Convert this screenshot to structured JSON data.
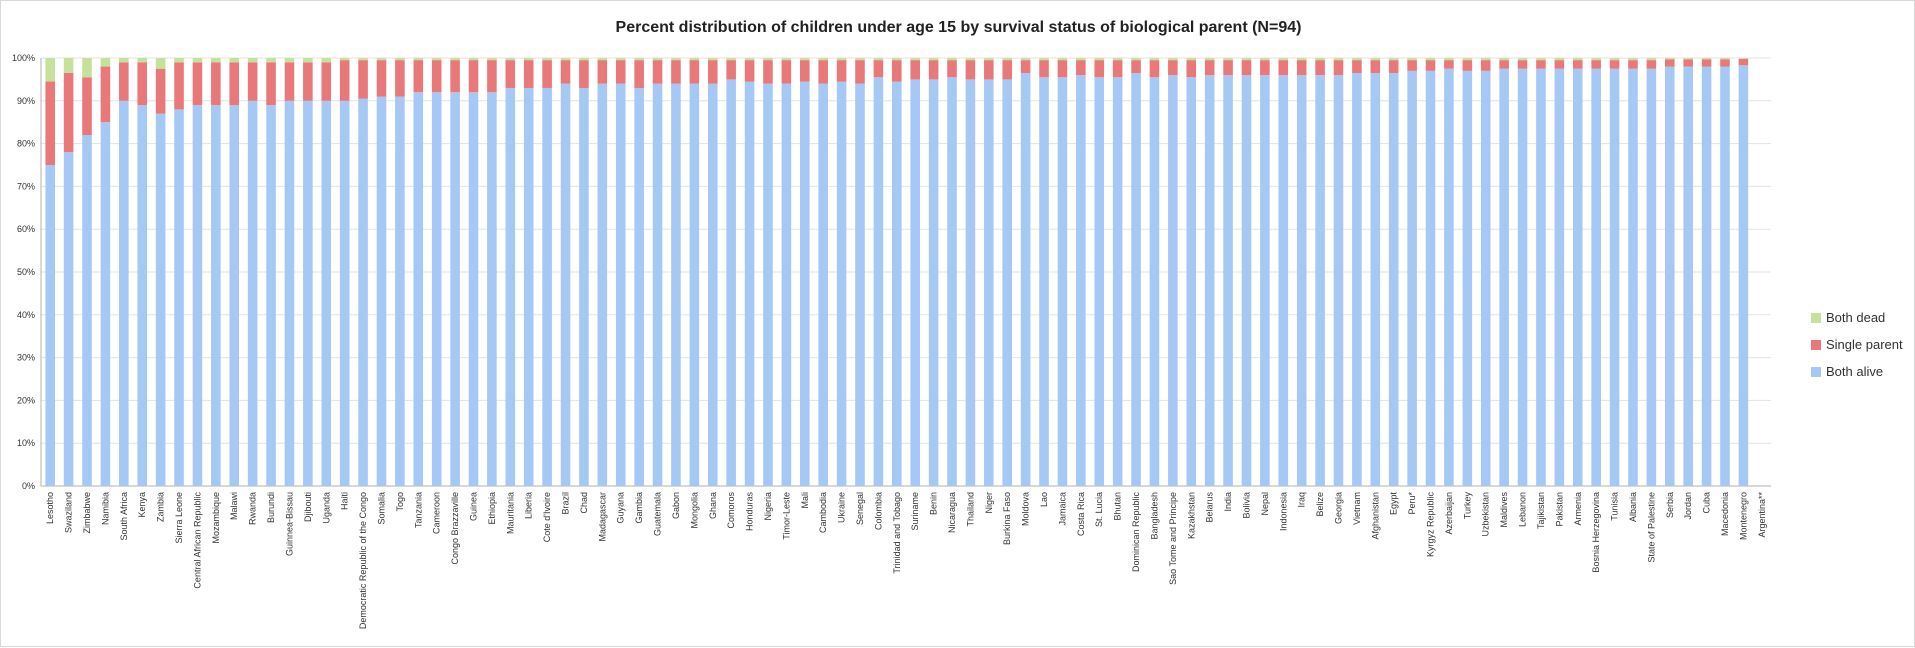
{
  "chart_data": {
    "type": "bar",
    "stacked": true,
    "title": "Percent distribution of children under age 15 by survival status of biological parent (N=94)",
    "ylim": [
      0,
      100
    ],
    "y_ticks": [
      "0%",
      "10%",
      "20%",
      "30%",
      "40%",
      "50%",
      "60%",
      "70%",
      "80%",
      "90%",
      "100%"
    ],
    "grid": "horizontal",
    "legend_position": "right",
    "categories": [
      "Lesotho",
      "Swaziland",
      "Zimbabwe",
      "Namibia",
      "South Africa",
      "Kenya",
      "Zambia",
      "Sierra Leone",
      "Central African Republic",
      "Mozambique",
      "Malawi",
      "Rwanda",
      "Burundi",
      "Guinnea-Bissau",
      "Djibouti",
      "Uganda",
      "Haiti",
      "Democratic Republic of the Congo",
      "Somalia",
      "Togo",
      "Tanzania",
      "Cameroon",
      "Congo Brazzaville",
      "Guinea",
      "Ethiopia",
      "Mauritania",
      "Liberia",
      "Cote d'Ivoire",
      "Brazil",
      "Chad",
      "Madagascar",
      "Guyana",
      "Gambia",
      "Guatemala",
      "Gabon",
      "Mongolia",
      "Ghana",
      "Comoros",
      "Honduras",
      "Nigeria",
      "Timor-Leste",
      "Mali",
      "Cambodia",
      "Ukraine",
      "Senegal",
      "Colombia",
      "Trinidad and Tobago",
      "Suriname",
      "Benin",
      "Nicaragua",
      "Thailand",
      "Niger",
      "Burkina Faso",
      "Moldova",
      "Lao",
      "Jamaica",
      "Costa Rica",
      "St. Lucia",
      "Bhutan",
      "Dominican Republic",
      "Bangladesh",
      "Sao Tome and Principe",
      "Kazakhstan",
      "Belarus",
      "India",
      "Bolivia",
      "Nepal",
      "Indonesia",
      "Iraq",
      "Belize",
      "Georgia",
      "Vietnam",
      "Afghanistan",
      "Egypt",
      "Peru*",
      "Kyrgyz Republic",
      "Azerbaijan",
      "Turkey",
      "Uzbekistan",
      "Maldives",
      "Lebanon",
      "Tajikistan",
      "Pakistan",
      "Armenia",
      "Bosnia Herzegovina",
      "Tunisia",
      "Albania",
      "State of Palestine",
      "Serbia",
      "Jordan",
      "Cuba",
      "Macedonia",
      "Montenegro",
      "Argentina**"
    ],
    "series": [
      {
        "name": "Both alive",
        "color": "#a6c8f4",
        "values": [
          75,
          78,
          82,
          85,
          90,
          89,
          87,
          88,
          89,
          89,
          89,
          90,
          89,
          90,
          90,
          90,
          90,
          90.5,
          91,
          91,
          92,
          92,
          92,
          92,
          92,
          93,
          93,
          93,
          94,
          93,
          94,
          94,
          93,
          94,
          94,
          94,
          94,
          95,
          94.5,
          94,
          94,
          94.5,
          94,
          94.5,
          94,
          95.5,
          94.5,
          95,
          95,
          95.5,
          95,
          95,
          95,
          96.5,
          95.5,
          95.5,
          96,
          95.5,
          95.5,
          96.5,
          95.5,
          96,
          95.5,
          96,
          96,
          96,
          96,
          96,
          96,
          96,
          96,
          96.5,
          96.5,
          96.5,
          97,
          97,
          97.5,
          97,
          97,
          97.5,
          97.5,
          97.5,
          97.5,
          97.5,
          97.5,
          97.5,
          97.5,
          97.5,
          98,
          98,
          98,
          98,
          98.3,
          0
        ]
      },
      {
        "name": "Single parent",
        "color": "#e8787a",
        "values": [
          19.5,
          18.5,
          13.5,
          13,
          9,
          10,
          10.5,
          11,
          10,
          10,
          10,
          9,
          10,
          9,
          9,
          9,
          9.5,
          9,
          8.5,
          8.5,
          7.5,
          7.5,
          7.5,
          7.5,
          7.5,
          6.5,
          6.5,
          6.5,
          5.5,
          6.5,
          5.5,
          5.5,
          6.5,
          5.5,
          5.5,
          5.5,
          5.5,
          4.5,
          5,
          5.5,
          5.5,
          5,
          5.5,
          5,
          5.5,
          4,
          5,
          4.5,
          4.5,
          4,
          4.5,
          4.5,
          4.5,
          3,
          4,
          4,
          3.5,
          4,
          4,
          3,
          4,
          3.5,
          4,
          3.5,
          3.5,
          3.5,
          3.5,
          3.5,
          3.5,
          3.5,
          3.5,
          3,
          3,
          3,
          2.5,
          2.5,
          2,
          2.5,
          2.5,
          2,
          2,
          2,
          2,
          2,
          2,
          2,
          2,
          2,
          1.7,
          1.7,
          1.7,
          1.7,
          1.5,
          0
        ]
      },
      {
        "name": "Both dead",
        "color": "#c5e19c",
        "values": [
          5.5,
          3.5,
          4.5,
          2,
          1,
          1,
          2.5,
          1,
          1,
          1,
          1,
          1,
          1,
          1,
          1,
          1,
          0.5,
          0.5,
          0.5,
          0.5,
          0.5,
          0.5,
          0.5,
          0.5,
          0.5,
          0.5,
          0.5,
          0.5,
          0.5,
          0.5,
          0.5,
          0.5,
          0.5,
          0.5,
          0.5,
          0.5,
          0.5,
          0.5,
          0.5,
          0.5,
          0.5,
          0.5,
          0.5,
          0.5,
          0.5,
          0.5,
          0.5,
          0.5,
          0.5,
          0.5,
          0.5,
          0.5,
          0.5,
          0.5,
          0.5,
          0.5,
          0.5,
          0.5,
          0.5,
          0.5,
          0.5,
          0.5,
          0.5,
          0.5,
          0.5,
          0.5,
          0.5,
          0.5,
          0.5,
          0.5,
          0.5,
          0.5,
          0.5,
          0.5,
          0.5,
          0.5,
          0.5,
          0.5,
          0.5,
          0.5,
          0.5,
          0.5,
          0.5,
          0.5,
          0.5,
          0.5,
          0.5,
          0.5,
          0.3,
          0.3,
          0.3,
          0.3,
          0.2,
          0
        ]
      }
    ]
  }
}
